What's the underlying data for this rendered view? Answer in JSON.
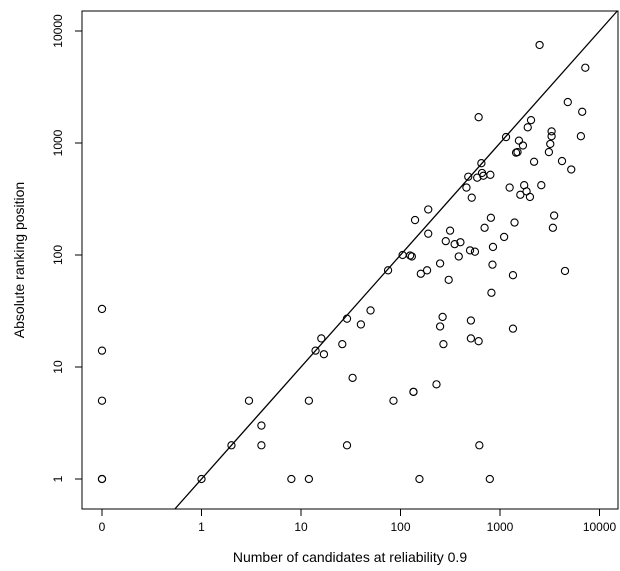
{
  "chart_data": {
    "type": "scatter",
    "title": "",
    "xlabel": "Number of candidates at reliability 0.9",
    "ylabel": "Absolute ranking position",
    "x_scale": "log",
    "y_scale": "log",
    "x_ticks": [
      {
        "value": 0,
        "label": "0"
      },
      {
        "value": 1,
        "label": "1"
      },
      {
        "value": 10,
        "label": "10"
      },
      {
        "value": 100,
        "label": "100"
      },
      {
        "value": 1000,
        "label": "1000"
      },
      {
        "value": 10000,
        "label": "10000"
      }
    ],
    "y_ticks": [
      {
        "value": 1,
        "label": "1"
      },
      {
        "value": 10,
        "label": "10"
      },
      {
        "value": 100,
        "label": "100"
      },
      {
        "value": 1000,
        "label": "1000"
      },
      {
        "value": 10000,
        "label": "10000"
      }
    ],
    "xlim": [
      0,
      15000
    ],
    "ylim": [
      0.6,
      14500
    ],
    "grid": false,
    "legend": "none",
    "marker": "open-circle",
    "reference_line": {
      "type": "y=x"
    },
    "points": [
      [
        0,
        33
      ],
      [
        0,
        14
      ],
      [
        0,
        5
      ],
      [
        0,
        1
      ],
      [
        0,
        1
      ],
      [
        1,
        1
      ],
      [
        2,
        2
      ],
      [
        3,
        5
      ],
      [
        4,
        3
      ],
      [
        4,
        2
      ],
      [
        8,
        1
      ],
      [
        12,
        1
      ],
      [
        12,
        5
      ],
      [
        14,
        14
      ],
      [
        16,
        18
      ],
      [
        17,
        13
      ],
      [
        26,
        16
      ],
      [
        29,
        2
      ],
      [
        29,
        27
      ],
      [
        33,
        8
      ],
      [
        40,
        24
      ],
      [
        50,
        32
      ],
      [
        75,
        73
      ],
      [
        85,
        5
      ],
      [
        105,
        100
      ],
      [
        125,
        99
      ],
      [
        130,
        97
      ],
      [
        135,
        6
      ],
      [
        135,
        6
      ],
      [
        140,
        205
      ],
      [
        155,
        1
      ],
      [
        160,
        68
      ],
      [
        185,
        73
      ],
      [
        190,
        255
      ],
      [
        190,
        155
      ],
      [
        230,
        7
      ],
      [
        250,
        84
      ],
      [
        250,
        23
      ],
      [
        265,
        28
      ],
      [
        270,
        16
      ],
      [
        285,
        133
      ],
      [
        305,
        60
      ],
      [
        315,
        165
      ],
      [
        350,
        125
      ],
      [
        385,
        97
      ],
      [
        400,
        130
      ],
      [
        460,
        400
      ],
      [
        480,
        500
      ],
      [
        500,
        110
      ],
      [
        510,
        18
      ],
      [
        510,
        26
      ],
      [
        520,
        325
      ],
      [
        560,
        107
      ],
      [
        590,
        490
      ],
      [
        610,
        17
      ],
      [
        610,
        1700
      ],
      [
        620,
        2
      ],
      [
        650,
        660
      ],
      [
        660,
        540
      ],
      [
        680,
        510
      ],
      [
        700,
        175
      ],
      [
        790,
        1
      ],
      [
        800,
        520
      ],
      [
        810,
        215
      ],
      [
        820,
        46
      ],
      [
        840,
        82
      ],
      [
        850,
        118
      ],
      [
        1100,
        145
      ],
      [
        1150,
        1130
      ],
      [
        1250,
        400
      ],
      [
        1350,
        22
      ],
      [
        1350,
        66
      ],
      [
        1400,
        195
      ],
      [
        1450,
        820
      ],
      [
        1500,
        830
      ],
      [
        1550,
        1050
      ],
      [
        1600,
        345
      ],
      [
        1700,
        950
      ],
      [
        1750,
        420
      ],
      [
        1850,
        370
      ],
      [
        1900,
        1380
      ],
      [
        2000,
        330
      ],
      [
        2050,
        1600
      ],
      [
        2200,
        680
      ],
      [
        2500,
        7500
      ],
      [
        2600,
        420
      ],
      [
        3100,
        830
      ],
      [
        3200,
        980
      ],
      [
        3300,
        1150
      ],
      [
        3300,
        1270
      ],
      [
        3400,
        175
      ],
      [
        3500,
        225
      ],
      [
        4200,
        690
      ],
      [
        4500,
        72
      ],
      [
        4800,
        2320
      ],
      [
        5200,
        580
      ],
      [
        6500,
        1150
      ],
      [
        6700,
        1900
      ],
      [
        7200,
        4700
      ]
    ]
  }
}
